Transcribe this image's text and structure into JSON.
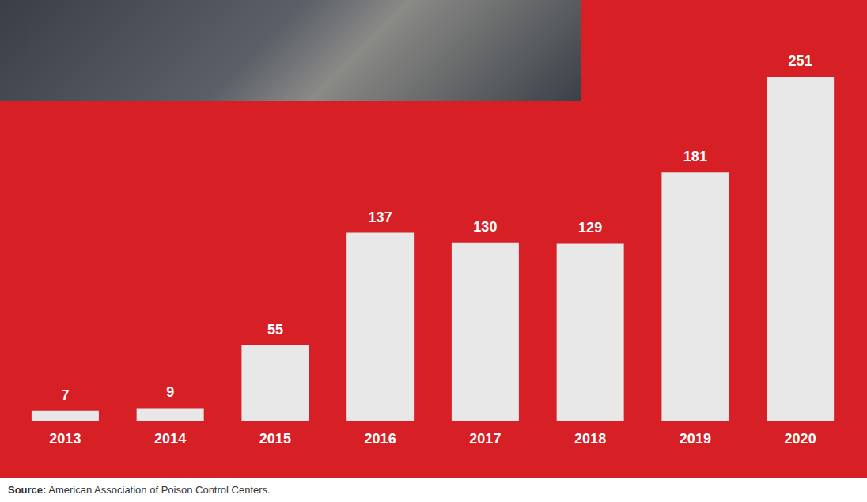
{
  "chart_data": {
    "type": "bar",
    "categories": [
      "2013",
      "2014",
      "2015",
      "2016",
      "2017",
      "2018",
      "2019",
      "2020"
    ],
    "values": [
      7,
      9,
      55,
      137,
      130,
      129,
      181,
      251
    ],
    "color": "#e8e8e8",
    "data_labels": true,
    "tick_labels": "x",
    "grid": false
  },
  "source": "Source: American Association of Poison Control Centers."
}
